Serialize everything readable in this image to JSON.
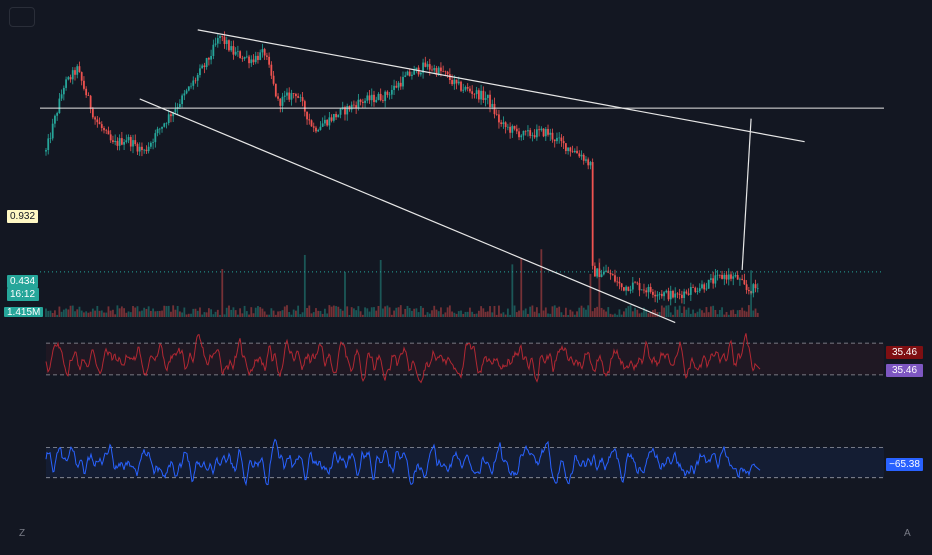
{
  "chart_data": {
    "type": "line",
    "panels": [
      {
        "kind": "price",
        "style": "candlestick",
        "x_range": [
          0,
          320
        ],
        "ylim": [
          0.3,
          1.2
        ],
        "markers": [
          {
            "name": "drawn-horizontal-line",
            "value": 0.932,
            "label": "0.932"
          },
          {
            "name": "last-price",
            "value": 0.434,
            "label": "0.434",
            "countdown": "16:12"
          }
        ],
        "volume_label": "1.415M",
        "trendlines": [
          {
            "name": "upper-trendline",
            "x": [
              68,
              340
            ],
            "y": [
              1.17,
              0.83
            ]
          },
          {
            "name": "lower-trendline",
            "x": [
              42,
              282
            ],
            "y": [
              0.96,
              0.28
            ]
          }
        ],
        "projection": {
          "name": "breakout-arrow",
          "x": [
            312,
            316
          ],
          "y": [
            0.44,
            0.9
          ]
        }
      },
      {
        "kind": "oscillator",
        "color": "#b22833",
        "band": [
          30,
          60
        ],
        "ylim": [
          10,
          80
        ],
        "last_value": 35.46,
        "labels": [
          "35.46",
          "35.46"
        ],
        "label_colors": [
          "#7f0f12",
          "#7e57c2"
        ]
      },
      {
        "kind": "oscillator",
        "color": "#2962ff",
        "band": [
          -80,
          -20
        ],
        "ylim": [
          -140,
          50
        ],
        "last_value": -65.38,
        "labels": [
          "−65.38"
        ],
        "label_colors": [
          "#2962ff"
        ]
      }
    ]
  },
  "ui": {
    "bottom_left_hint": "Z",
    "bottom_right_hint": "A"
  },
  "colors": {
    "background": "#131722",
    "up": "#26a69a",
    "down": "#ef5350",
    "line": "#e6e6e6",
    "last_price": "#26a69a"
  }
}
